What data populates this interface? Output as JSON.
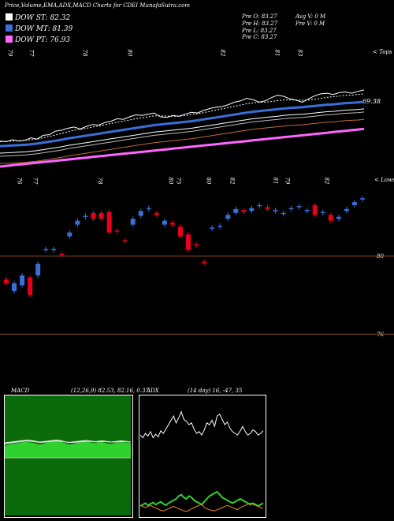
{
  "header": {
    "title": "Price,Volume,EMA,ADX,MACD Charts for CDEI MunafaSutra.com"
  },
  "legend": [
    {
      "label": "DOW ST: 82.32",
      "color": "#ffffff"
    },
    {
      "label": "DOW MT: 81.39",
      "color": "#3a6fd8"
    },
    {
      "label": "DOW PT: 76.93",
      "color": "#ff66ff"
    }
  ],
  "ohlc": {
    "prev_open": "Pre O: 83.27",
    "prev_high": "Pre H: 83.27",
    "prev_low": "Pre L: 83.27",
    "prev_close": "Pre C: 83.27",
    "avg_volume": "Avg V: 0 M",
    "prev_volume": "Pre V: 0 M"
  },
  "top_panel": {
    "corner_label": "< Tops",
    "value_label": "69.38",
    "top_marks": [
      "79",
      "77",
      "78",
      "80",
      "82",
      "81",
      "83"
    ],
    "bottom_corner_label": "< Lows",
    "bottom_marks": [
      "76",
      "77",
      "78",
      "80",
      "75",
      "80",
      "82",
      "81",
      "79",
      "82"
    ]
  },
  "colors": {
    "up": "#3a6fd8",
    "down": "#e8001c",
    "ema_short": "#ffffff",
    "ema_mid": "#3a6fd8",
    "ema_long": "#ff66ff",
    "macd_area": "#2fd12f",
    "adx_plus": "#2fd12f",
    "adx_minus": "#f08a1c",
    "hline": "#8a4a1a"
  },
  "macd_panel": {
    "label": "MACD",
    "params": "(12,26,9) 82.53, 82.16, 0.37"
  },
  "adx_panel": {
    "label": "ADX",
    "params": "(14 day) 16, -47, 35"
  },
  "chart_data": [
    {
      "type": "line",
      "name_hint": "price and EMA panel",
      "series": [
        {
          "name": "Price",
          "values": [
            70.0,
            69.8,
            70.4,
            70.0,
            70.2,
            71.0,
            70.6,
            71.8,
            72.0,
            73.1,
            73.4,
            74.0,
            74.4,
            73.8,
            74.6,
            75.2,
            75.0,
            75.8,
            76.2,
            77.0,
            76.8,
            77.6,
            78.2,
            78.0,
            78.4,
            78.8,
            77.6,
            77.4,
            78.0,
            77.8,
            78.4,
            79.0,
            78.8,
            79.6,
            80.2,
            80.6,
            80.8,
            81.4,
            82.2,
            82.6,
            83.4,
            83.0,
            82.2,
            82.6,
            83.6,
            84.4,
            84.0,
            83.2,
            82.8,
            82.2,
            83.2,
            84.2,
            84.8,
            85.0,
            84.6,
            85.2,
            85.4,
            85.0,
            85.6,
            86.0
          ]
        },
        {
          "name": "EMA short",
          "values": [
            69.8,
            69.9,
            70.0,
            70.1,
            70.2,
            70.4,
            70.6,
            71.0,
            71.4,
            71.9,
            72.4,
            72.9,
            73.4,
            73.6,
            74.0,
            74.4,
            74.7,
            75.1,
            75.5,
            75.9,
            76.2,
            76.6,
            77.0,
            77.3,
            77.6,
            77.9,
            77.9,
            77.8,
            77.8,
            77.8,
            78.0,
            78.3,
            78.6,
            78.9,
            79.3,
            79.7,
            80.1,
            80.5,
            80.9,
            81.3,
            81.7,
            82.0,
            82.1,
            82.2,
            82.4,
            82.7,
            82.9,
            82.9,
            82.9,
            82.8,
            82.9,
            83.1,
            83.4,
            83.7,
            83.9,
            84.1,
            84.3,
            84.4,
            84.6,
            84.8
          ]
        },
        {
          "name": "EMA mid",
          "values": [
            68.4,
            68.5,
            68.6,
            68.7,
            68.8,
            69.0,
            69.2,
            69.5,
            69.8,
            70.1,
            70.4,
            70.8,
            71.1,
            71.4,
            71.7,
            72.0,
            72.3,
            72.6,
            72.9,
            73.2,
            73.5,
            73.8,
            74.1,
            74.4,
            74.7,
            75.0,
            75.2,
            75.4,
            75.6,
            75.8,
            76.0,
            76.2,
            76.5,
            76.8,
            77.1,
            77.4,
            77.7,
            78.0,
            78.3,
            78.6,
            78.9,
            79.2,
            79.4,
            79.6,
            79.8,
            80.0,
            80.2,
            80.4,
            80.5,
            80.6,
            80.8,
            81.0,
            81.2,
            81.4,
            81.5,
            81.7,
            81.9,
            82.0,
            82.1,
            82.3
          ]
        },
        {
          "name": "EMA long",
          "values": [
            62.0,
            62.2,
            62.4,
            62.6,
            62.8,
            63.0,
            63.2,
            63.4,
            63.6,
            63.8,
            64.0,
            64.2,
            64.4,
            64.6,
            64.8,
            65.0,
            65.2,
            65.4,
            65.6,
            65.8,
            66.0,
            66.2,
            66.4,
            66.6,
            66.8,
            67.0,
            67.2,
            67.4,
            67.6,
            67.8,
            68.0,
            68.2,
            68.4,
            68.6,
            68.8,
            69.0,
            69.2,
            69.4,
            69.6,
            69.8,
            70.0,
            70.2,
            70.4,
            70.6,
            70.8,
            71.0,
            71.2,
            71.4,
            71.6,
            71.8,
            72.0,
            72.2,
            72.4,
            72.6,
            72.8,
            73.0,
            73.2,
            73.4,
            73.6,
            73.8
          ]
        }
      ]
    },
    {
      "type": "bar",
      "name_hint": "candlestick panel",
      "levels": [
        80,
        76
      ],
      "candles": [
        {
          "o": 78.8,
          "c": 78.6
        },
        {
          "o": 78.2,
          "c": 78.6
        },
        {
          "o": 78.5,
          "c": 79.0
        },
        {
          "o": 78.9,
          "c": 78.0
        },
        {
          "o": 79.0,
          "c": 79.6
        },
        {
          "o": 80.3,
          "c": 80.35
        },
        {
          "o": 80.3,
          "c": 80.35
        },
        {
          "o": 80.1,
          "c": 80.05
        },
        {
          "o": 81.0,
          "c": 81.2
        },
        {
          "o": 81.6,
          "c": 81.8
        },
        {
          "o": 82.0,
          "c": 82.05
        },
        {
          "o": 82.2,
          "c": 81.9
        },
        {
          "o": 82.2,
          "c": 81.9
        },
        {
          "o": 82.25,
          "c": 81.2
        },
        {
          "o": 81.3,
          "c": 81.25
        },
        {
          "o": 80.8,
          "c": 80.75
        },
        {
          "o": 81.6,
          "c": 81.9
        },
        {
          "o": 82.05,
          "c": 82.3
        },
        {
          "o": 82.4,
          "c": 82.45
        },
        {
          "o": 82.2,
          "c": 82.1
        },
        {
          "o": 81.6,
          "c": 81.8
        },
        {
          "o": 81.7,
          "c": 81.6
        },
        {
          "o": 81.5,
          "c": 81.0
        },
        {
          "o": 81.1,
          "c": 80.3
        },
        {
          "o": 80.6,
          "c": 80.55
        },
        {
          "o": 79.7,
          "c": 79.68
        },
        {
          "o": 81.4,
          "c": 81.45
        },
        {
          "o": 81.5,
          "c": 81.55
        },
        {
          "o": 81.9,
          "c": 82.1
        },
        {
          "o": 82.2,
          "c": 82.4
        },
        {
          "o": 82.35,
          "c": 82.25
        },
        {
          "o": 82.3,
          "c": 82.45
        },
        {
          "o": 82.55,
          "c": 82.6
        },
        {
          "o": 82.5,
          "c": 82.4
        },
        {
          "o": 82.3,
          "c": 82.35
        },
        {
          "o": 82.15,
          "c": 82.2
        },
        {
          "o": 82.4,
          "c": 82.45
        },
        {
          "o": 82.5,
          "c": 82.55
        },
        {
          "o": 82.3,
          "c": 82.35
        },
        {
          "o": 82.6,
          "c": 82.1
        },
        {
          "o": 82.2,
          "c": 82.25
        },
        {
          "o": 82.1,
          "c": 81.8
        },
        {
          "o": 81.9,
          "c": 82.0
        },
        {
          "o": 82.3,
          "c": 82.4
        },
        {
          "o": 82.6,
          "c": 82.75
        },
        {
          "o": 82.9,
          "c": 82.95
        }
      ]
    },
    {
      "type": "area",
      "name_hint": "MACD panel",
      "series": [
        {
          "name": "MACD area",
          "values": [
            0.6,
            0.65,
            0.7,
            0.72,
            0.75,
            0.78,
            0.8,
            0.8,
            0.78,
            0.75,
            0.7,
            0.68,
            0.72,
            0.76,
            0.8,
            0.82,
            0.84,
            0.82,
            0.78,
            0.72,
            0.68,
            0.7,
            0.74,
            0.78,
            0.8,
            0.82,
            0.8,
            0.76,
            0.74,
            0.78,
            0.8,
            0.76,
            0.72,
            0.7,
            0.74,
            0.78,
            0.8,
            0.78,
            0.76,
            0.74
          ]
        },
        {
          "name": "MACD",
          "values": [
            0.75,
            0.78,
            0.8,
            0.82,
            0.84,
            0.86,
            0.88,
            0.9,
            0.88,
            0.86,
            0.82,
            0.8,
            0.82,
            0.84,
            0.86,
            0.88,
            0.9,
            0.88,
            0.84,
            0.8,
            0.78,
            0.8,
            0.82,
            0.84,
            0.86,
            0.88,
            0.86,
            0.84,
            0.82,
            0.84,
            0.86,
            0.84,
            0.82,
            0.8,
            0.82,
            0.84,
            0.86,
            0.84,
            0.82,
            0.8
          ]
        },
        {
          "name": "Signal",
          "values": [
            0.7,
            0.72,
            0.75,
            0.78,
            0.8,
            0.82,
            0.84,
            0.85,
            0.84,
            0.82,
            0.8,
            0.78,
            0.79,
            0.8,
            0.82,
            0.84,
            0.85,
            0.84,
            0.82,
            0.8,
            0.78,
            0.78,
            0.79,
            0.8,
            0.82,
            0.83,
            0.83,
            0.82,
            0.81,
            0.81,
            0.82,
            0.82,
            0.81,
            0.8,
            0.8,
            0.81,
            0.82,
            0.82,
            0.81,
            0.8
          ]
        }
      ]
    },
    {
      "type": "line",
      "name_hint": "ADX panel",
      "series": [
        {
          "name": "ADX",
          "values": [
            58,
            55,
            60,
            57,
            62,
            55,
            59,
            56,
            63,
            60,
            65,
            70,
            75,
            80,
            72,
            78,
            85,
            76,
            74,
            70,
            72,
            65,
            60,
            62,
            58,
            64,
            72,
            70,
            75,
            68,
            80,
            82,
            76,
            70,
            73,
            66,
            62,
            60,
            58,
            63,
            68,
            62,
            58,
            60,
            64,
            62,
            58,
            60,
            63
          ]
        },
        {
          "name": "DI+",
          "values": [
            10,
            12,
            14,
            11,
            13,
            15,
            12,
            14,
            16,
            13,
            11,
            14,
            16,
            18,
            20,
            24,
            26,
            22,
            20,
            24,
            22,
            18,
            16,
            14,
            12,
            16,
            20,
            24,
            26,
            28,
            30,
            26,
            22,
            20,
            18,
            16,
            14,
            16,
            18,
            20,
            18,
            16,
            14,
            12,
            14,
            12,
            10,
            12,
            14
          ]
        },
        {
          "name": "DI-",
          "values": [
            14,
            12,
            10,
            12,
            14,
            11,
            9,
            7,
            5,
            4,
            6,
            8,
            10,
            12,
            10,
            8,
            6,
            4,
            3,
            5,
            8,
            10,
            12,
            14,
            16,
            10,
            8,
            6,
            5,
            4,
            6,
            8,
            10,
            12,
            14,
            12,
            10,
            8,
            6,
            10,
            12,
            14,
            16,
            18,
            16,
            14,
            12,
            10,
            8
          ]
        }
      ]
    }
  ]
}
